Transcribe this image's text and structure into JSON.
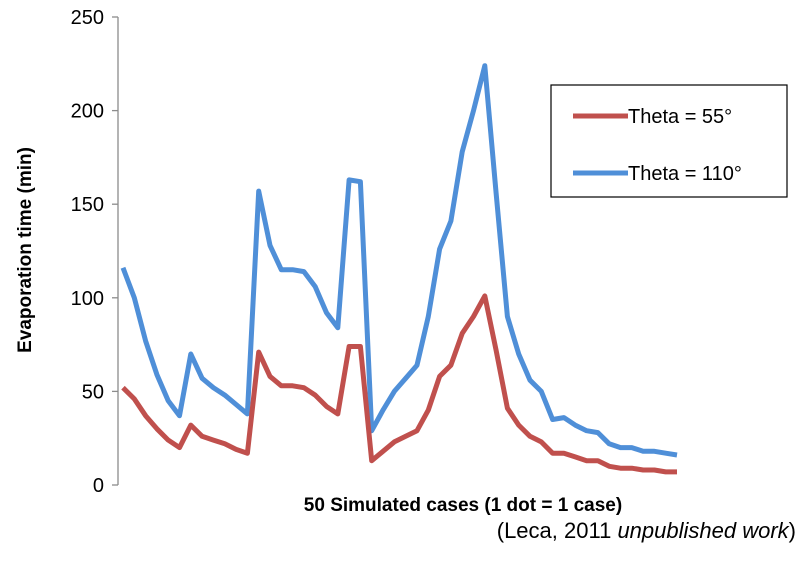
{
  "chart_data": {
    "type": "line",
    "xlabel": "50 Simulated cases (1 dot = 1 case)",
    "ylabel": "Evaporation time (min)",
    "ylim": [
      0,
      250
    ],
    "yticks": [
      "0",
      "50",
      "100",
      "150",
      "200",
      "250"
    ],
    "grid": false,
    "legend_position": "top-right",
    "x": [
      1,
      2,
      3,
      4,
      5,
      6,
      7,
      8,
      9,
      10,
      11,
      12,
      13,
      14,
      15,
      16,
      17,
      18,
      19,
      20,
      21,
      22,
      23,
      24,
      25,
      26,
      27,
      28,
      29,
      30,
      31,
      32,
      33,
      34,
      35,
      36,
      37,
      38,
      39,
      40,
      41,
      42,
      43,
      44,
      45,
      46,
      47,
      48,
      49,
      50
    ],
    "series": [
      {
        "name": "Theta = 55°",
        "color": "#c0504d",
        "values": [
          52,
          46,
          37,
          30,
          24,
          20,
          32,
          26,
          24,
          22,
          19,
          17,
          71,
          58,
          53,
          53,
          52,
          48,
          42,
          38,
          74,
          74,
          13,
          18,
          23,
          26,
          29,
          40,
          58,
          64,
          81,
          90,
          101,
          72,
          41,
          32,
          26,
          23,
          17,
          17,
          15,
          13,
          13,
          10,
          9,
          9,
          8,
          8,
          7,
          7
        ]
      },
      {
        "name": "Theta = 110°",
        "color": "#4f8fd8",
        "values": [
          116,
          100,
          77,
          59,
          45,
          37,
          70,
          57,
          52,
          48,
          43,
          38,
          157,
          128,
          115,
          115,
          114,
          106,
          92,
          84,
          163,
          162,
          29,
          40,
          50,
          57,
          64,
          90,
          126,
          141,
          178,
          200,
          224,
          156,
          90,
          70,
          56,
          50,
          35,
          36,
          32,
          29,
          28,
          22,
          20,
          20,
          18,
          18,
          17,
          16
        ]
      }
    ],
    "annotation": {
      "prefix": "(Leca, 2011 ",
      "italic": "unpublished work",
      "suffix": ")"
    }
  }
}
